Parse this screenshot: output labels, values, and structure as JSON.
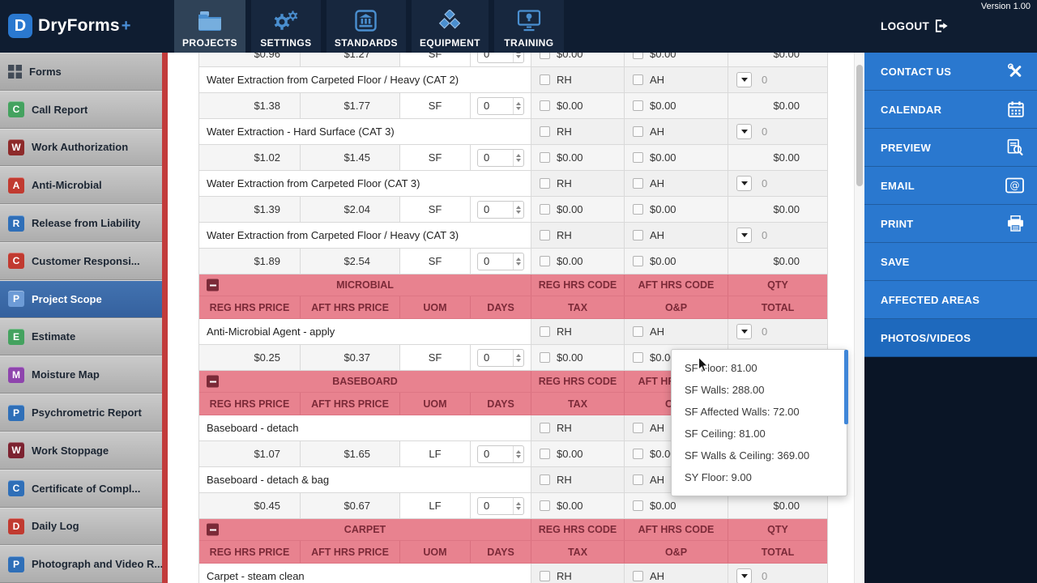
{
  "brand": {
    "mark": "D",
    "name": "DryForms",
    "plus": "+"
  },
  "header": {
    "version": "Version 1.00",
    "logout": "LOGOUT",
    "tabs": [
      {
        "label": "PROJECTS",
        "icon": "folder-icon",
        "active": true
      },
      {
        "label": "SETTINGS",
        "icon": "gears-icon",
        "active": false
      },
      {
        "label": "STANDARDS",
        "icon": "standards-bank-icon",
        "active": false
      },
      {
        "label": "EQUIPMENT",
        "icon": "equipment-cubes-icon",
        "active": false
      },
      {
        "label": "TRAINING",
        "icon": "training-monitor-icon",
        "active": false
      }
    ]
  },
  "sidebar": {
    "header": "Forms",
    "items": [
      {
        "label": "Call Report",
        "letter": "C",
        "color": "#44a25f",
        "selected": false
      },
      {
        "label": "Work Authorization",
        "letter": "W",
        "color": "#8d2a2a",
        "selected": false
      },
      {
        "label": "Anti-Microbial",
        "letter": "A",
        "color": "#c13a30",
        "selected": false
      },
      {
        "label": "Release from Liability",
        "letter": "R",
        "color": "#2f6fb8",
        "selected": false
      },
      {
        "label": "Customer Responsi...",
        "letter": "C",
        "color": "#c13a30",
        "selected": false
      },
      {
        "label": "Project Scope",
        "letter": "P",
        "color": "#6d9bd6",
        "selected": true
      },
      {
        "label": "Estimate",
        "letter": "E",
        "color": "#44a25f",
        "selected": false
      },
      {
        "label": "Moisture Map",
        "letter": "M",
        "color": "#8e44ad",
        "selected": false
      },
      {
        "label": "Psychrometric Report",
        "letter": "P",
        "color": "#2f6fb8",
        "selected": false
      },
      {
        "label": "Work Stoppage",
        "letter": "W",
        "color": "#7c2230",
        "selected": false
      },
      {
        "label": "Certificate of Compl...",
        "letter": "C",
        "color": "#2f6fb8",
        "selected": false
      },
      {
        "label": "Daily Log",
        "letter": "D",
        "color": "#c13a30",
        "selected": false
      },
      {
        "label": "Photograph and Video R...",
        "letter": "P",
        "color": "#2f6fb8",
        "selected": false
      }
    ]
  },
  "right_panel": {
    "items": [
      {
        "label": "CONTACT US",
        "icon": "tools-icon",
        "active": false
      },
      {
        "label": "CALENDAR",
        "icon": "calendar-icon",
        "active": false
      },
      {
        "label": "PREVIEW",
        "icon": "preview-icon",
        "active": false
      },
      {
        "label": "EMAIL",
        "icon": "email-icon",
        "active": false
      },
      {
        "label": "PRINT",
        "icon": "print-icon",
        "active": false
      },
      {
        "label": "SAVE",
        "icon": null,
        "active": false
      },
      {
        "label": "AFFECTED AREAS",
        "icon": null,
        "active": false
      },
      {
        "label": "PHOTOS/VIDEOS",
        "icon": null,
        "active": true
      }
    ]
  },
  "table": {
    "section_columns_row1": [
      "REG HRS CODE",
      "AFT HRS CODE",
      "QTY"
    ],
    "section_columns_row2": [
      "REG HRS PRICE",
      "AFT HRS PRICE",
      "UOM",
      "DAYS",
      "TAX",
      "O&P",
      "TOTAL"
    ],
    "item_defaults": {
      "reg_hrs_code": "RH",
      "aft_hrs_code": "AH",
      "qty": "0"
    },
    "price_defaults": {
      "days": "0",
      "tax": "$0.00",
      "op": "$0.00",
      "total": "$0.00"
    },
    "rows": [
      {
        "type": "price_partial",
        "reg_hrs_price": "$0.96",
        "aft_hrs_price": "$1.27",
        "uom": "SF"
      },
      {
        "type": "item",
        "description": "Water Extraction from Carpeted Floor / Heavy (CAT 2)"
      },
      {
        "type": "price",
        "reg_hrs_price": "$1.38",
        "aft_hrs_price": "$1.77",
        "uom": "SF"
      },
      {
        "type": "item",
        "description": "Water Extraction - Hard Surface (CAT 3)"
      },
      {
        "type": "price",
        "reg_hrs_price": "$1.02",
        "aft_hrs_price": "$1.45",
        "uom": "SF"
      },
      {
        "type": "item",
        "description": "Water Extraction from Carpeted Floor (CAT 3)"
      },
      {
        "type": "price",
        "reg_hrs_price": "$1.39",
        "aft_hrs_price": "$2.04",
        "uom": "SF"
      },
      {
        "type": "item",
        "description": "Water Extraction from Carpeted Floor / Heavy (CAT 3)"
      },
      {
        "type": "price",
        "reg_hrs_price": "$1.89",
        "aft_hrs_price": "$2.54",
        "uom": "SF"
      },
      {
        "type": "section",
        "title": "MICROBIAL"
      },
      {
        "type": "item",
        "description": "Anti-Microbial Agent - apply"
      },
      {
        "type": "price",
        "reg_hrs_price": "$0.25",
        "aft_hrs_price": "$0.37",
        "uom": "SF"
      },
      {
        "type": "section",
        "title": "BASEBOARD"
      },
      {
        "type": "item",
        "description": "Baseboard - detach"
      },
      {
        "type": "price",
        "reg_hrs_price": "$1.07",
        "aft_hrs_price": "$1.65",
        "uom": "LF"
      },
      {
        "type": "item",
        "description": "Baseboard - detach & bag"
      },
      {
        "type": "price",
        "reg_hrs_price": "$0.45",
        "aft_hrs_price": "$0.67",
        "uom": "LF"
      },
      {
        "type": "section",
        "title": "CARPET"
      },
      {
        "type": "item",
        "description": "Carpet - steam clean"
      }
    ]
  },
  "tooltip": {
    "items": [
      "SF Floor: 81.00",
      "SF Walls: 288.00",
      "SF Affected Walls: 72.00",
      "SF Ceiling: 81.00",
      "SF Walls & Ceiling: 369.00",
      "SY Floor: 9.00"
    ]
  },
  "colors": {
    "panel_blue": "#2a78cf",
    "panel_blue_active": "#1e69bd",
    "section_pink": "#e8828f",
    "section_text": "#7b2a38",
    "selected_item_blue": "#3a68a6",
    "sidebar_stripe_red": "#c23b3b",
    "accent_icon_blue": "#4a8fd0"
  }
}
